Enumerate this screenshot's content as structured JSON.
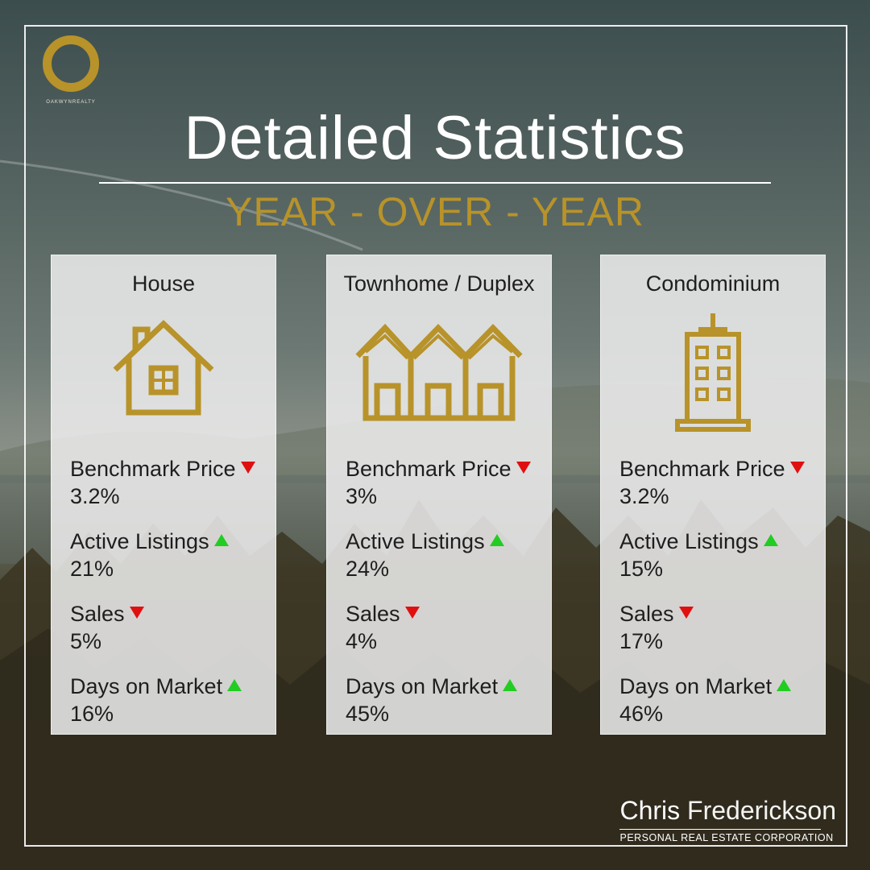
{
  "brand": {
    "logo_text": "OAKWYNREALTY",
    "accent_color": "#b8932a"
  },
  "header": {
    "title": "Detailed Statistics",
    "subtitle": "YEAR - OVER - YEAR"
  },
  "cards": [
    {
      "title": "House",
      "icon": "house-icon",
      "stats": [
        {
          "label": "Benchmark Price",
          "value": "3.2%",
          "trend": "down"
        },
        {
          "label": "Active Listings",
          "value": "21%",
          "trend": "up"
        },
        {
          "label": "Sales",
          "value": "5%",
          "trend": "down"
        },
        {
          "label": "Days on Market",
          "value": "16%",
          "trend": "up"
        }
      ]
    },
    {
      "title": "Townhome / Duplex",
      "icon": "townhome-icon",
      "stats": [
        {
          "label": "Benchmark Price",
          "value": "3%",
          "trend": "down"
        },
        {
          "label": "Active Listings",
          "value": "24%",
          "trend": "up"
        },
        {
          "label": "Sales",
          "value": "4%",
          "trend": "down"
        },
        {
          "label": "Days on Market",
          "value": "45%",
          "trend": "up"
        }
      ]
    },
    {
      "title": "Condominium",
      "icon": "condominium-icon",
      "stats": [
        {
          "label": "Benchmark Price",
          "value": "3.2%",
          "trend": "down"
        },
        {
          "label": "Active Listings",
          "value": "15%",
          "trend": "up"
        },
        {
          "label": "Sales",
          "value": "17%",
          "trend": "down"
        },
        {
          "label": "Days on Market",
          "value": "46%",
          "trend": "up"
        }
      ]
    }
  ],
  "signature": {
    "first_name": "Chris",
    "last_name": "Frederickson",
    "tagline": "PERSONAL REAL ESTATE CORPORATION"
  },
  "colors": {
    "down": "#e01010",
    "up": "#22cc22",
    "gold": "#b8932a"
  }
}
